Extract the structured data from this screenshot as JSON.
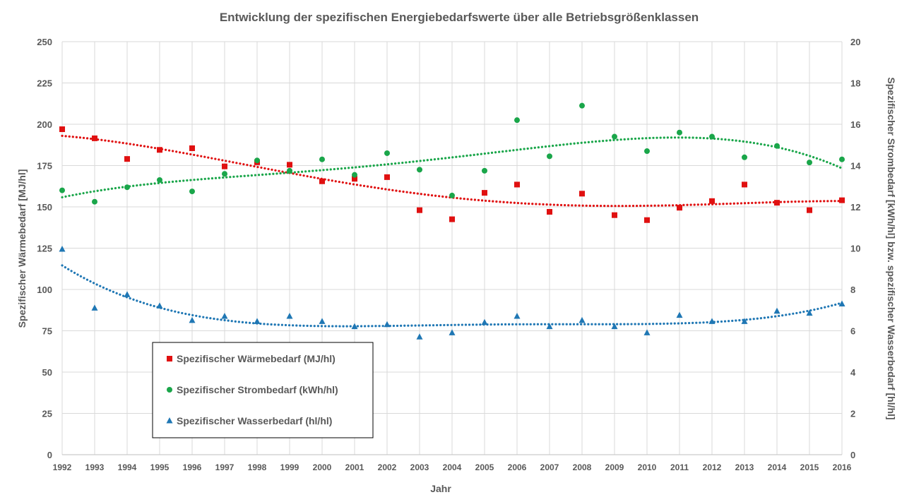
{
  "chart_data": {
    "type": "scatter",
    "title": "Entwicklung der spezifischen Energiebedarfswerte über alle Betriebsgrößenklassen",
    "xlabel": "Jahr",
    "ylabel": "Spezifischer Wärmebedarf [MJ/hl]",
    "y2label": "Spezifischer Strombedarf [kWh/hl] bzw. spezifischer Wasserbedarf [hl/hl]",
    "xlim": [
      1992,
      2016
    ],
    "ylim": [
      0,
      250
    ],
    "y2lim": [
      0,
      20
    ],
    "grid": true,
    "legend_position": "bottom-left inside",
    "x": [
      1992,
      1993,
      1994,
      1995,
      1996,
      1997,
      1998,
      1999,
      2000,
      2001,
      2002,
      2003,
      2004,
      2005,
      2006,
      2007,
      2008,
      2009,
      2010,
      2011,
      2012,
      2013,
      2014,
      2015,
      2016
    ],
    "x_ticks": [
      "1992",
      "1993",
      "1994",
      "1995",
      "1996",
      "1997",
      "1998",
      "1999",
      "2000",
      "2001",
      "2002",
      "2003",
      "2004",
      "2005",
      "2006",
      "2007",
      "2008",
      "2009",
      "2010",
      "2011",
      "2012",
      "2013",
      "2014",
      "2015",
      "2016"
    ],
    "y_ticks": [
      0,
      25,
      50,
      75,
      100,
      125,
      150,
      175,
      200,
      225,
      250
    ],
    "y2_ticks": [
      0,
      2,
      4,
      6,
      8,
      10,
      12,
      14,
      16,
      18,
      20
    ],
    "series": [
      {
        "name": "Spezifischer Wärmebedarf (MJ/hl)",
        "axis": "left",
        "marker": "square",
        "color": "#e01010",
        "trendline": "dotted polynomial",
        "values": [
          197,
          191.5,
          179,
          184.5,
          185.5,
          174.5,
          177,
          175.5,
          165.5,
          167,
          168,
          148,
          142.5,
          158.5,
          163.5,
          147,
          158,
          145,
          142,
          149.5,
          153.5,
          163.5,
          152.5,
          148,
          154
        ]
      },
      {
        "name": "Spezifischer Strombedarf (kWh/hl)",
        "axis": "right",
        "marker": "circle",
        "color": "#1aa64a",
        "trendline": "dotted polynomial",
        "values": [
          12.8,
          12.25,
          12.95,
          13.3,
          12.75,
          13.6,
          14.25,
          13.75,
          14.3,
          13.55,
          14.6,
          13.8,
          12.55,
          13.75,
          16.2,
          14.45,
          16.9,
          15.4,
          14.7,
          15.6,
          15.4,
          14.4,
          14.95,
          14.15,
          14.3
        ]
      },
      {
        "name": "Spezifischer Wasserbedarf (hl/hl)",
        "axis": "right",
        "marker": "triangle",
        "color": "#1f77b4",
        "trendline": "dotted polynomial",
        "values": [
          9.95,
          7.1,
          7.75,
          7.2,
          6.5,
          6.7,
          6.45,
          6.7,
          6.45,
          6.2,
          6.3,
          5.7,
          5.9,
          6.4,
          6.7,
          6.2,
          6.5,
          6.2,
          5.9,
          6.75,
          6.45,
          6.45,
          6.95,
          6.85,
          7.3
        ]
      }
    ]
  }
}
